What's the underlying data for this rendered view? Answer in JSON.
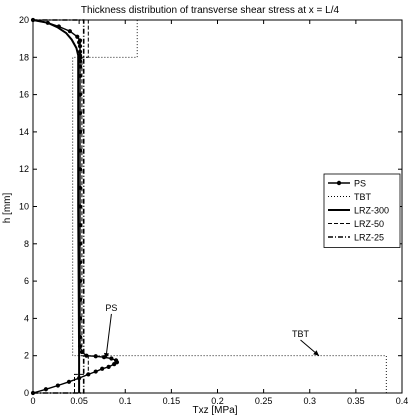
{
  "chart_data": {
    "type": "line",
    "title": "Thickness distribution of transverse shear stress at x = L/4",
    "xlabel": "Txz [MPa]",
    "ylabel": "h [mm]",
    "xlim": [
      0,
      0.4
    ],
    "ylim": [
      0,
      20
    ],
    "xticks": [
      "0",
      "0.05",
      "0.1",
      "0.15",
      "0.2",
      "0.25",
      "0.3",
      "0.35",
      "0.4"
    ],
    "yticks": [
      "0",
      "2",
      "4",
      "6",
      "8",
      "10",
      "12",
      "14",
      "16",
      "18",
      "20"
    ],
    "grid": false,
    "legend_position": "right",
    "series": [
      {
        "name": "PS",
        "style": "dots",
        "x": [
          0,
          0.014,
          0.027,
          0.039,
          0.05,
          0.06,
          0.068,
          0.075,
          0.082,
          0.088,
          0.091,
          0.09,
          0.085,
          0.077,
          0.068,
          0.058,
          0.053,
          0.051,
          0.051,
          0.051,
          0.051,
          0.051,
          0.051,
          0.051,
          0.051,
          0.051,
          0.051,
          0.051,
          0.051,
          0.051,
          0.051,
          0.051,
          0.051,
          0.051,
          0.051,
          0.051,
          0.051,
          0.051,
          0.051,
          0.05,
          0.051,
          0.048,
          0.04,
          0.028,
          0.016,
          0
        ],
        "y": [
          0,
          0.2,
          0.4,
          0.6,
          0.8,
          1.0,
          1.15,
          1.3,
          1.4,
          1.55,
          1.65,
          1.75,
          1.85,
          1.92,
          1.97,
          2.0,
          2.2,
          2.5,
          3,
          4,
          5,
          6,
          7,
          8,
          9,
          10,
          11,
          12,
          13,
          14,
          15,
          16,
          17,
          17.5,
          17.8,
          18.0,
          18.1,
          18.3,
          18.6,
          18.8,
          18.9,
          19.1,
          19.4,
          19.65,
          19.85,
          20
        ]
      },
      {
        "name": "TBT",
        "style": "dotted",
        "x": [
          0.383,
          0.383,
          0.043,
          0.043,
          0.113,
          0.113,
          0
        ],
        "y": [
          0,
          2,
          2,
          18,
          18,
          20,
          20
        ]
      },
      {
        "name": "LRZ-300",
        "style": "solid",
        "x": [
          0,
          0.016,
          0.027,
          0.036,
          0.042,
          0.047,
          0.049,
          0.049,
          0.05,
          0.05
        ],
        "y": [
          20,
          19.85,
          19.6,
          19.3,
          18.95,
          18.5,
          18.1,
          10,
          2.0,
          0
        ]
      },
      {
        "name": "LRZ-50",
        "style": "dashed",
        "x": [
          0.045,
          0.045,
          0.06,
          0.06,
          0.053,
          0.053,
          0.06,
          0.06,
          0
        ],
        "y": [
          0,
          1.0,
          1.0,
          2.0,
          2.0,
          18.0,
          18.0,
          20,
          20
        ]
      },
      {
        "name": "LRZ-25",
        "style": "dashdot",
        "x": [
          0,
          0.055,
          0.055,
          0.055,
          0.055,
          0
        ],
        "y": [
          0,
          0,
          2.0,
          18.0,
          20,
          20
        ]
      }
    ],
    "annotations": [
      {
        "text": "PS",
        "x": 0.085,
        "y": 4.4,
        "arrow_to": [
          0.079,
          1.85
        ]
      },
      {
        "text": "TBT",
        "x": 0.29,
        "y": 3.0,
        "arrow_to": [
          0.31,
          2.0
        ]
      }
    ]
  }
}
